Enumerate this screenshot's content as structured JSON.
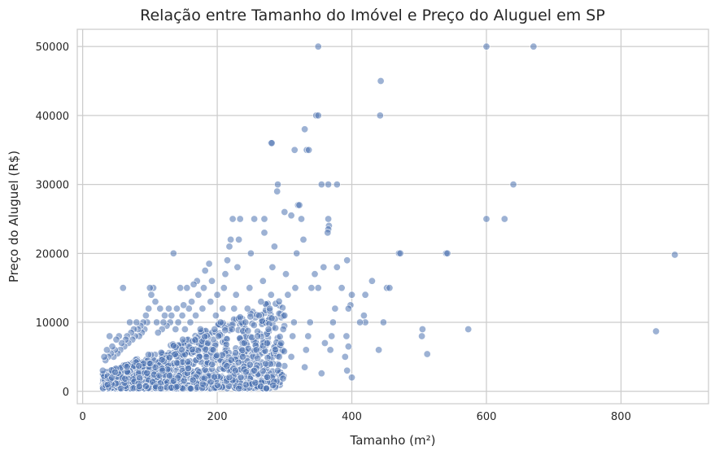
{
  "chart_data": {
    "type": "scatter",
    "title": "Relação entre Tamanho do Imóvel e Preço do Aluguel em SP",
    "xlabel": "Tamanho (m²)",
    "ylabel": "Preço do Aluguel (R$)",
    "xlim": [
      -8,
      930
    ],
    "ylim": [
      -1800,
      52500
    ],
    "xticks": [
      0,
      200,
      400,
      600,
      800
    ],
    "yticks": [
      0,
      10000,
      20000,
      30000,
      40000,
      50000
    ],
    "xtick_labels": [
      "0",
      "200",
      "400",
      "600",
      "800"
    ],
    "ytick_labels": [
      "0",
      "10000",
      "20000",
      "30000",
      "40000",
      "50000"
    ],
    "grid": true,
    "point_color": "#4c72b0",
    "points": [
      [
        350,
        50000
      ],
      [
        600,
        50000
      ],
      [
        670,
        50000
      ],
      [
        443,
        45000
      ],
      [
        442,
        40000
      ],
      [
        347,
        40000
      ],
      [
        350,
        40000
      ],
      [
        330,
        38000
      ],
      [
        333,
        35000
      ],
      [
        336,
        35000
      ],
      [
        315,
        35000
      ],
      [
        280,
        36000
      ],
      [
        281,
        36000
      ],
      [
        290,
        30000
      ],
      [
        289,
        29000
      ],
      [
        355,
        30000
      ],
      [
        365,
        30000
      ],
      [
        378,
        30000
      ],
      [
        640,
        30000
      ],
      [
        320,
        27000
      ],
      [
        322,
        27000
      ],
      [
        325,
        25000
      ],
      [
        310,
        25500
      ],
      [
        300,
        26000
      ],
      [
        255,
        25000
      ],
      [
        270,
        25000
      ],
      [
        223,
        25000
      ],
      [
        234,
        25000
      ],
      [
        365,
        25000
      ],
      [
        366,
        24000
      ],
      [
        365,
        23500
      ],
      [
        364,
        23000
      ],
      [
        600,
        25000
      ],
      [
        627,
        25000
      ],
      [
        880,
        19800
      ],
      [
        852,
        8700
      ],
      [
        470,
        20000
      ],
      [
        472,
        20000
      ],
      [
        540,
        20000
      ],
      [
        542,
        20000
      ],
      [
        430,
        16000
      ],
      [
        452,
        15000
      ],
      [
        456,
        15000
      ],
      [
        447,
        10000
      ],
      [
        420,
        14000
      ],
      [
        418,
        11000
      ],
      [
        420,
        10000
      ],
      [
        412,
        10000
      ],
      [
        440,
        6000
      ],
      [
        505,
        9000
      ],
      [
        504,
        8000
      ],
      [
        512,
        5400
      ],
      [
        573,
        9000
      ],
      [
        400,
        14000
      ],
      [
        398,
        12500
      ],
      [
        395,
        12000
      ],
      [
        393,
        19000
      ],
      [
        392,
        8000
      ],
      [
        395,
        6500
      ],
      [
        390,
        5000
      ],
      [
        393,
        3000
      ],
      [
        400,
        2000
      ],
      [
        385,
        15000
      ],
      [
        378,
        18000
      ],
      [
        375,
        12000
      ],
      [
        372,
        10000
      ],
      [
        370,
        8000
      ],
      [
        368,
        6000
      ],
      [
        360,
        7000
      ],
      [
        358,
        18000
      ],
      [
        355,
        2600
      ],
      [
        350,
        15000
      ],
      [
        345,
        17000
      ],
      [
        340,
        15000
      ],
      [
        338,
        10000
      ],
      [
        335,
        8000
      ],
      [
        332,
        6000
      ],
      [
        330,
        3500
      ],
      [
        328,
        22000
      ],
      [
        318,
        20000
      ],
      [
        316,
        15000
      ],
      [
        314,
        10000
      ],
      [
        312,
        8000
      ],
      [
        310,
        5000
      ],
      [
        305,
        14000
      ],
      [
        302,
        17000
      ],
      [
        300,
        11000
      ],
      [
        298,
        9000
      ],
      [
        295,
        7000
      ],
      [
        292,
        5000
      ],
      [
        290,
        3000
      ],
      [
        285,
        21000
      ],
      [
        282,
        18000
      ],
      [
        280,
        14000
      ],
      [
        278,
        12000
      ],
      [
        276,
        9000
      ],
      [
        274,
        7000
      ],
      [
        272,
        4000
      ],
      [
        270,
        23000
      ],
      [
        268,
        16000
      ],
      [
        265,
        13000
      ],
      [
        262,
        11000
      ],
      [
        260,
        8000
      ],
      [
        258,
        6000
      ],
      [
        255,
        3000
      ],
      [
        250,
        20000
      ],
      [
        248,
        15000
      ],
      [
        245,
        12000
      ],
      [
        242,
        10000
      ],
      [
        240,
        7000
      ],
      [
        238,
        5000
      ],
      [
        235,
        2000
      ],
      [
        232,
        22000
      ],
      [
        230,
        18000
      ],
      [
        228,
        14000
      ],
      [
        225,
        12000
      ],
      [
        222,
        9000
      ],
      [
        220,
        22000
      ],
      [
        218,
        21000
      ],
      [
        215,
        19000
      ],
      [
        212,
        17000
      ],
      [
        210,
        15000
      ],
      [
        208,
        12000
      ],
      [
        205,
        10000
      ],
      [
        202,
        8000
      ],
      [
        200,
        14000
      ],
      [
        198,
        11000
      ],
      [
        196,
        9000
      ],
      [
        194,
        6000
      ],
      [
        192,
        16000
      ],
      [
        190,
        13000
      ],
      [
        188,
        18500
      ],
      [
        186,
        7000
      ],
      [
        184,
        5000
      ],
      [
        182,
        17500
      ],
      [
        180,
        15000
      ],
      [
        178,
        12000
      ],
      [
        175,
        9000
      ],
      [
        172,
        14000
      ],
      [
        170,
        16000
      ],
      [
        168,
        11000
      ],
      [
        165,
        15500
      ],
      [
        162,
        13000
      ],
      [
        160,
        10000
      ],
      [
        158,
        12000
      ],
      [
        155,
        15000
      ],
      [
        152,
        9000
      ],
      [
        150,
        12500
      ],
      [
        148,
        11000
      ],
      [
        145,
        15000
      ],
      [
        142,
        10000
      ],
      [
        140,
        12000
      ],
      [
        138,
        9000
      ],
      [
        135,
        20000
      ],
      [
        132,
        11000
      ],
      [
        130,
        10000
      ],
      [
        128,
        12000
      ],
      [
        125,
        9500
      ],
      [
        122,
        11000
      ],
      [
        120,
        10000
      ],
      [
        118,
        9000
      ],
      [
        115,
        12000
      ],
      [
        112,
        8500
      ],
      [
        110,
        10000
      ],
      [
        108,
        13000
      ],
      [
        105,
        15000
      ],
      [
        102,
        14000
      ],
      [
        100,
        15000
      ],
      [
        98,
        12000
      ],
      [
        96,
        10000
      ],
      [
        94,
        11000
      ],
      [
        92,
        9000
      ],
      [
        90,
        10000
      ],
      [
        88,
        8500
      ],
      [
        86,
        9500
      ],
      [
        84,
        8000
      ],
      [
        82,
        9000
      ],
      [
        80,
        10000
      ],
      [
        78,
        8000
      ],
      [
        76,
        9000
      ],
      [
        74,
        7500
      ],
      [
        72,
        8500
      ],
      [
        70,
        10000
      ],
      [
        68,
        7000
      ],
      [
        66,
        8000
      ],
      [
        64,
        7500
      ],
      [
        62,
        6500
      ],
      [
        60,
        15000
      ],
      [
        58,
        7000
      ],
      [
        56,
        6000
      ],
      [
        54,
        8000
      ],
      [
        52,
        5500
      ],
      [
        50,
        7500
      ],
      [
        48,
        6000
      ],
      [
        46,
        5000
      ],
      [
        44,
        6500
      ],
      [
        42,
        5500
      ],
      [
        40,
        8000
      ],
      [
        38,
        5000
      ],
      [
        36,
        6000
      ],
      [
        34,
        4500
      ],
      [
        32,
        5000
      ],
      [
        30,
        3000
      ]
    ]
  }
}
